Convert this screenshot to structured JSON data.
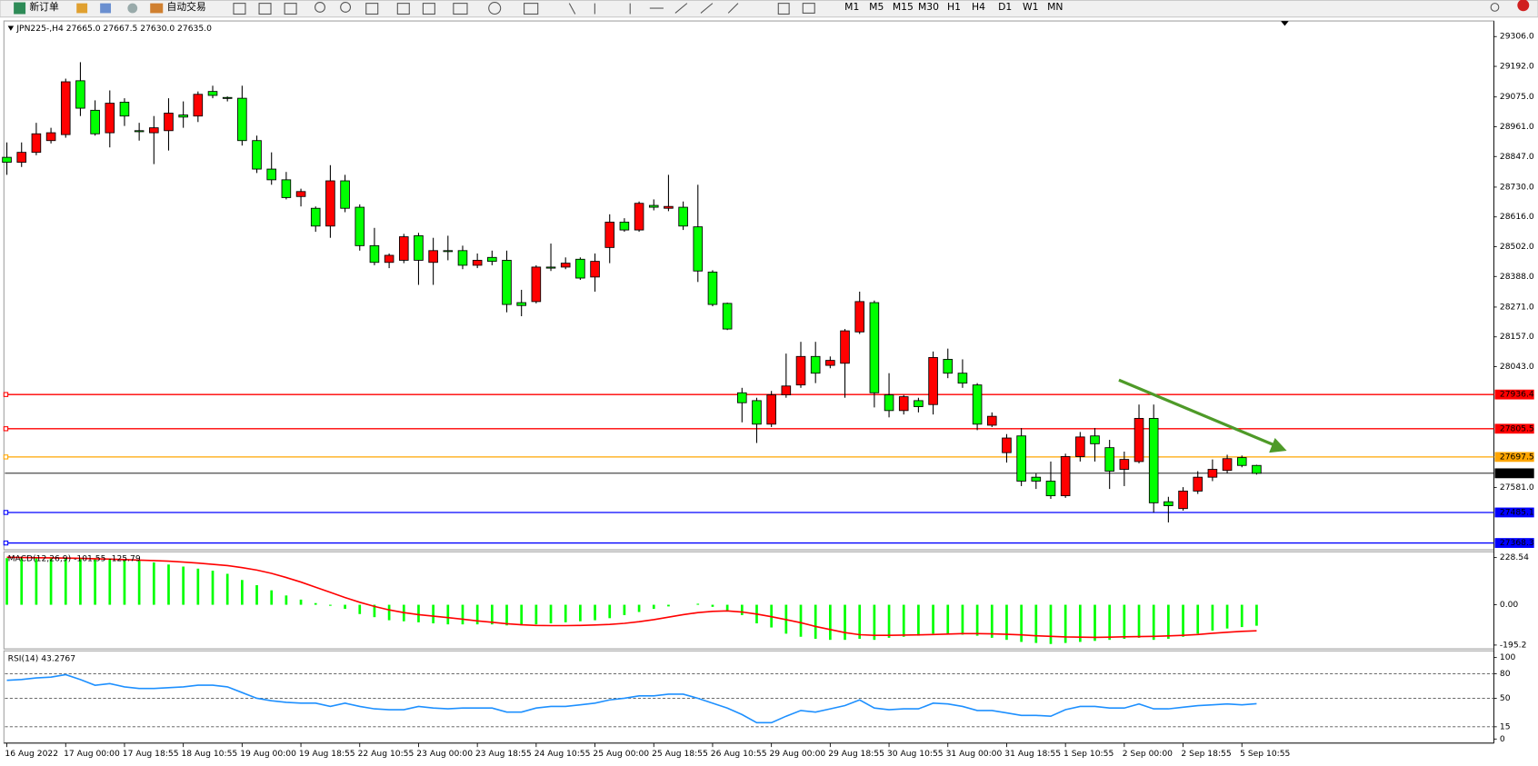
{
  "toolbar": {
    "new_order": "新订单",
    "auto_trading": "自动交易",
    "timeframes": [
      "M1",
      "M5",
      "M15",
      "M30",
      "H1",
      "H4",
      "D1",
      "W1",
      "MN"
    ]
  },
  "chart_data": [
    {
      "type": "candlestick",
      "title": "JPN225-,H4  27665.0 27667.5 27630.0 27635.0",
      "categories": [
        "16 Aug 2022",
        null,
        null,
        null,
        "17 Aug 00:00",
        null,
        null,
        null,
        "17 Aug 18:55",
        null,
        null,
        null,
        "18 Aug 10:55",
        null,
        null,
        null,
        "19 Aug 00:00",
        null,
        null,
        null,
        "19 Aug 18:55",
        null,
        null,
        null,
        "22 Aug 10:55",
        null,
        null,
        null,
        "23 Aug 00:00",
        null,
        null,
        null,
        "23 Aug 18:55",
        null,
        null,
        null,
        "24 Aug 10:55",
        null,
        null,
        null,
        "25 Aug 00:00",
        null,
        null,
        null,
        "25 Aug 18:55",
        null,
        null,
        null,
        "26 Aug 10:55",
        null,
        null,
        null,
        "29 Aug 00:00",
        null,
        null,
        null,
        "29 Aug 18:55",
        null,
        null,
        null,
        "30 Aug 10:55",
        null,
        null,
        null,
        "31 Aug 00:00",
        null,
        null,
        null,
        "31 Aug 18:55",
        null,
        null,
        null,
        "1 Sep 10:55",
        null,
        null,
        null,
        "2 Sep 00:00",
        null,
        null,
        null,
        "2 Sep 18:55",
        null,
        null,
        null,
        "5 Sep 10:55",
        null
      ],
      "open": [
        28844,
        28825,
        28863,
        28908,
        28931,
        29137,
        29024,
        28938,
        29055,
        28946,
        28938,
        28946,
        29006,
        29002,
        29096,
        29073,
        29070,
        28908,
        28799,
        28758,
        28694,
        28649,
        28581,
        28754,
        28653,
        28506,
        28442,
        28450,
        28544,
        28442,
        28487,
        28487,
        28431,
        28461,
        28450,
        28288,
        28292,
        28424,
        28424,
        28454,
        28386,
        28499,
        28596,
        28566,
        28660,
        28649,
        28653,
        28578,
        28405,
        28285,
        27943,
        27913,
        27823,
        27935,
        27973,
        28082,
        28048,
        28056,
        28176,
        28288,
        27935,
        27875,
        27913,
        27898,
        28071,
        28018,
        27973,
        27819,
        27714,
        27778,
        27620,
        27605,
        27549,
        27699,
        27778,
        27733,
        27650,
        27680,
        27845,
        27526,
        27500,
        27567,
        27620,
        27646,
        27695,
        27665
      ],
      "high": [
        28901,
        28901,
        28976,
        28957,
        29145,
        29208,
        29062,
        29100,
        29070,
        28976,
        29002,
        29070,
        29058,
        29096,
        29118,
        29077,
        29118,
        28927,
        28863,
        28788,
        28724,
        28656,
        28814,
        28777,
        28664,
        28574,
        28476,
        28551,
        28555,
        28536,
        28544,
        28506,
        28476,
        28487,
        28487,
        28337,
        28431,
        28514,
        28461,
        28461,
        28476,
        28626,
        28611,
        28675,
        28683,
        28777,
        28675,
        28739,
        28412,
        28288,
        27962,
        27924,
        27950,
        28093,
        28138,
        28138,
        28082,
        28187,
        28330,
        28296,
        28018,
        27935,
        27924,
        28101,
        28112,
        28071,
        27980,
        27868,
        27785,
        27808,
        27635,
        27680,
        27710,
        27793,
        27808,
        27763,
        27718,
        27898,
        27898,
        27545,
        27582,
        27643,
        27688,
        27706,
        27703,
        27667.5
      ],
      "low": [
        28777,
        28807,
        28852,
        28897,
        28919,
        29002,
        28927,
        28882,
        28964,
        28908,
        28818,
        28870,
        28957,
        28979,
        29070,
        29058,
        28889,
        28784,
        28739,
        28683,
        28656,
        28559,
        28536,
        28634,
        28487,
        28431,
        28420,
        28439,
        28356,
        28356,
        28450,
        28416,
        28420,
        28431,
        28251,
        28236,
        28285,
        28409,
        28416,
        28375,
        28330,
        28439,
        28559,
        28559,
        28641,
        28638,
        28566,
        28367,
        28274,
        28183,
        27830,
        27751,
        27812,
        27924,
        27962,
        27980,
        28037,
        27924,
        28168,
        27887,
        27849,
        27860,
        27868,
        27860,
        27999,
        27962,
        27800,
        27812,
        27676,
        27586,
        27575,
        27537,
        27541,
        27680,
        27680,
        27575,
        27586,
        27673,
        27485,
        27447,
        27492,
        27556,
        27605,
        27635,
        27658,
        27630
      ],
      "close": [
        28825,
        28863,
        28934,
        28938,
        29133,
        29032,
        28934,
        29051,
        29002,
        28942,
        28957,
        29013,
        28998,
        29085,
        29081,
        29070,
        28908,
        28799,
        28758,
        28690,
        28713,
        28581,
        28754,
        28649,
        28506,
        28442,
        28469,
        28540,
        28450,
        28487,
        28484,
        28431,
        28450,
        28446,
        28281,
        28277,
        28424,
        28420,
        28439,
        28382,
        28446,
        28596,
        28566,
        28668,
        28653,
        28656,
        28581,
        28409,
        28281,
        28187,
        27905,
        27823,
        27935,
        27969,
        28082,
        28018,
        28067,
        28180,
        28292,
        27943,
        27875,
        27928,
        27890,
        28078,
        28018,
        27980,
        27823,
        27853,
        27770,
        27605,
        27605,
        27549,
        27699,
        27774,
        27748,
        27643,
        27688,
        27845,
        27522,
        27511,
        27567,
        27620,
        27650,
        27691,
        27665,
        27635
      ],
      "up_color": "#ff0000",
      "down_color": "#00ff00",
      "ylim": [
        27346,
        29362
      ],
      "yticks": [
        {
          "value": 29306,
          "label": "29306.0"
        },
        {
          "value": 29192,
          "label": "29192.0"
        },
        {
          "value": 29075,
          "label": "29075.0"
        },
        {
          "value": 28961,
          "label": "28961.0"
        },
        {
          "value": 28847,
          "label": "28847.0"
        },
        {
          "value": 28730,
          "label": "28730.0"
        },
        {
          "value": 28616,
          "label": "28616.0"
        },
        {
          "value": 28502,
          "label": "28502.0"
        },
        {
          "value": 28388,
          "label": "28388.0"
        },
        {
          "value": 28271,
          "label": "28271.0"
        },
        {
          "value": 28157,
          "label": "28157.0"
        },
        {
          "value": 28043,
          "label": "28043.0"
        },
        {
          "value": 27581,
          "label": "27581.0"
        }
      ],
      "levels": [
        {
          "value": 27936.4,
          "label": "27936.4",
          "color": "#ff0000"
        },
        {
          "value": 27805.5,
          "label": "27805.5",
          "color": "#ff0000"
        },
        {
          "value": 27697.5,
          "label": "27697.5",
          "color": "#ffa500"
        },
        {
          "value": 27485.1,
          "label": "27485.1",
          "color": "#0000ff"
        },
        {
          "value": 27368.3,
          "label": "27368.3",
          "color": "#0000ff"
        }
      ],
      "bid": {
        "value": 27635,
        "label": "27635.0",
        "color": "#000000"
      }
    },
    {
      "type": "macd",
      "title": "MACD(12,26,9) -101.55 -125.79",
      "histogram": [
        226,
        226,
        225,
        225,
        224,
        224,
        223,
        222,
        220,
        215,
        205,
        195,
        185,
        175,
        165,
        150,
        120,
        95,
        70,
        45,
        25,
        8,
        -5,
        -20,
        -45,
        -60,
        -75,
        -80,
        -85,
        -90,
        -95,
        -95,
        -95,
        -95,
        -100,
        -100,
        -95,
        -90,
        -85,
        -80,
        -75,
        -65,
        -50,
        -35,
        -20,
        -8,
        0,
        5,
        -10,
        -30,
        -50,
        -90,
        -110,
        -140,
        -155,
        -165,
        -170,
        -170,
        -165,
        -170,
        -160,
        -155,
        -150,
        -140,
        -140,
        -145,
        -150,
        -160,
        -170,
        -180,
        -185,
        -190,
        -185,
        -180,
        -175,
        -170,
        -165,
        -160,
        -170,
        -165,
        -155,
        -140,
        -125,
        -115,
        -108,
        -101.55
      ],
      "signal": [
        230,
        229,
        228,
        227,
        226,
        225,
        223,
        221,
        219,
        216,
        214,
        211,
        207,
        202,
        196,
        190,
        180,
        168,
        152,
        132,
        110,
        85,
        60,
        35,
        12,
        -8,
        -25,
        -38,
        -48,
        -55,
        -62,
        -70,
        -78,
        -85,
        -92,
        -97,
        -100,
        -101,
        -101,
        -100,
        -98,
        -95,
        -90,
        -82,
        -72,
        -60,
        -48,
        -38,
        -32,
        -30,
        -35,
        -45,
        -58,
        -72,
        -87,
        -105,
        -120,
        -135,
        -145,
        -148,
        -148,
        -147,
        -146,
        -144,
        -142,
        -140,
        -140,
        -141,
        -143,
        -146,
        -150,
        -153,
        -156,
        -157,
        -158,
        -157,
        -155,
        -154,
        -153,
        -151,
        -148,
        -144,
        -138,
        -133,
        -129,
        -125.79
      ],
      "histogram_color": "#00ff00",
      "signal_color": "#ff0000",
      "ylim": [
        -209,
        252
      ],
      "yticks": [
        {
          "value": 228.54,
          "label": "228.54"
        },
        {
          "value": 0,
          "label": "0.00"
        },
        {
          "value": -195.2,
          "label": "-195.2"
        }
      ]
    },
    {
      "type": "line",
      "title": "RSI(14) 43.2767",
      "values": [
        72,
        73,
        75,
        76,
        79,
        73,
        66,
        68,
        64,
        62,
        62,
        63,
        64,
        66,
        66,
        64,
        57,
        50,
        47,
        45,
        44,
        44,
        40,
        44,
        40,
        37,
        36,
        36,
        40,
        38,
        37,
        38,
        38,
        38,
        33,
        33,
        38,
        40,
        40,
        42,
        44,
        48,
        50,
        53,
        53,
        55,
        55,
        50,
        44,
        38,
        30,
        20,
        20,
        28,
        35,
        33,
        37,
        41,
        48,
        38,
        36,
        37,
        37,
        44,
        43,
        40,
        35,
        35,
        32,
        29,
        29,
        28,
        36,
        40,
        40,
        38,
        38,
        43,
        37,
        37,
        39,
        41,
        42,
        43,
        42,
        43.2767
      ],
      "color": "#1e90ff",
      "ylim": [
        -5,
        107
      ],
      "yticks": [
        100,
        80,
        50,
        15,
        0
      ],
      "levels": [
        80,
        50,
        15
      ]
    }
  ]
}
